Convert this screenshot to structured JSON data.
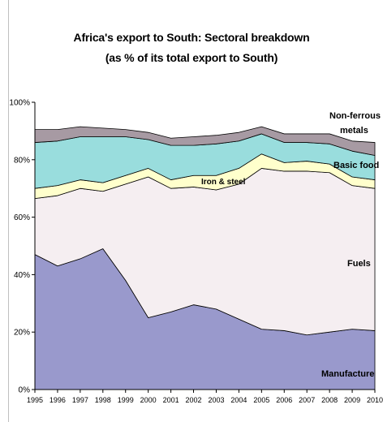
{
  "chart_data": {
    "type": "area",
    "stacked": true,
    "title": "Africa's export to South: Sectoral breakdown",
    "subtitle": "(as % of its total export to South)",
    "x": [
      "1995",
      "1996",
      "1997",
      "1998",
      "1999",
      "2000",
      "2001",
      "2002",
      "2003",
      "2004",
      "2005",
      "2006",
      "2007",
      "2008",
      "2009",
      "2010"
    ],
    "ylim": [
      0,
      100
    ],
    "yticks": [
      "0%",
      "20%",
      "40%",
      "60%",
      "80%",
      "100%"
    ],
    "grid": false,
    "series": [
      {
        "name": "Manufacture",
        "color": "#9999cc",
        "values": [
          47,
          43,
          45.5,
          49,
          38,
          25,
          27,
          29.5,
          28,
          24.5,
          21,
          20.5,
          19,
          20,
          21,
          20.5
        ]
      },
      {
        "name": "Fuels",
        "color": "#f5eef1",
        "values": [
          19.5,
          24.5,
          24.5,
          20,
          33.5,
          49,
          43,
          41,
          41.5,
          47,
          56,
          55.5,
          57,
          55.5,
          50,
          49.5
        ]
      },
      {
        "name": "Iron & steel",
        "color": "#ffffcc",
        "values": [
          3.5,
          3.5,
          3,
          3,
          3,
          3,
          3,
          4,
          5,
          5.5,
          5,
          3,
          3.5,
          3,
          3,
          3
        ]
      },
      {
        "name": "Basic food",
        "color": "#99dddd",
        "values": [
          16,
          15.5,
          15,
          16,
          13.5,
          10,
          12,
          10.5,
          11,
          9.5,
          7,
          7,
          6.5,
          7,
          9,
          8.5
        ]
      },
      {
        "name": "Non-ferrous metals",
        "color": "#a79aa3",
        "values": [
          4.5,
          4,
          3.5,
          3,
          2.5,
          2.5,
          2.5,
          3,
          3,
          3,
          2.5,
          3,
          3,
          3.5,
          3.5,
          4.5
        ]
      }
    ],
    "annotations": [
      {
        "text": "Non-ferrous",
        "series": "Non-ferrous metals"
      },
      {
        "text": "metals",
        "series": "Non-ferrous metals"
      },
      {
        "text": "Basic food",
        "series": "Basic food"
      },
      {
        "text": "Iron & steel",
        "series": "Iron & steel"
      },
      {
        "text": "Fuels",
        "series": "Fuels"
      },
      {
        "text": "Manufacture",
        "series": "Manufacture"
      }
    ]
  }
}
